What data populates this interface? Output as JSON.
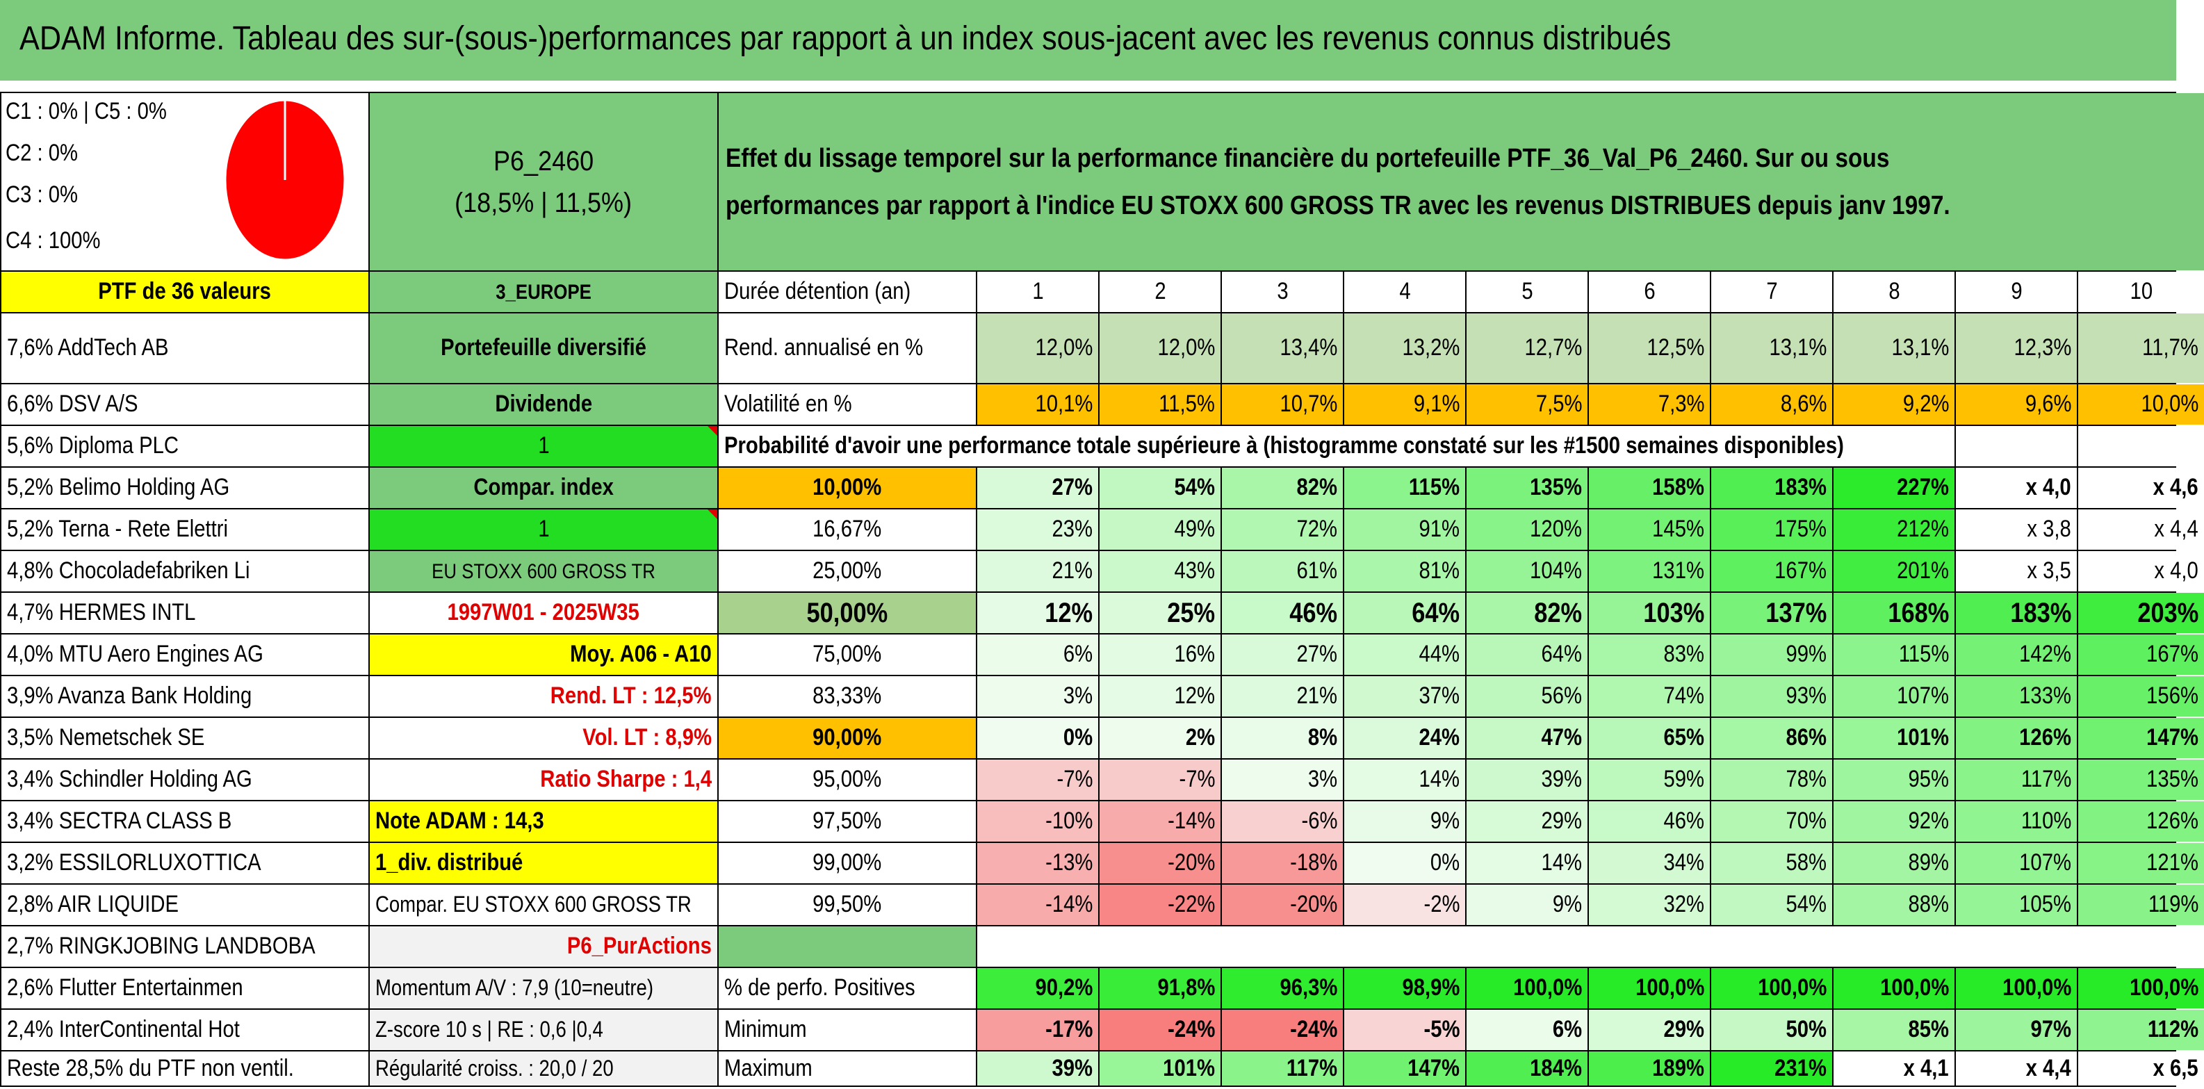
{
  "title": "ADAM Informe. Tableau des sur-(sous-)performances par rapport à un index sous-jacent avec les revenus connus distribués",
  "legend": [
    "C1 : 0% | C5 : 0%",
    "C2 : 0%",
    "C3 : 0%",
    "C4 : 100%"
  ],
  "pie_colors": {
    "fill": "#ff0000",
    "edge": "#ffffff"
  },
  "portfolio": {
    "code": "P6_2460",
    "ratios": "(18,5% | 11,5%)"
  },
  "description": "Effet du lissage temporel sur la performance financière du portefeuille PTF_36_Val_P6_2460. Sur ou sous performances par rapport à l'indice EU STOXX 600 GROSS TR avec les revenus DISTRIBUES depuis janv 1997.",
  "holdings": [
    "PTF de 36 valeurs",
    "7,6% AddTech AB",
    "6,6% DSV A/S",
    "5,6% Diploma PLC",
    "5,2% Belimo Holding AG",
    "5,2% Terna - Rete Elettri",
    "4,8% Chocoladefabriken Li",
    "4,7% HERMES INTL",
    "4,0% MTU Aero Engines AG",
    "3,9% Avanza Bank Holding",
    "3,5% Nemetschek SE",
    "3,4% Schindler Holding AG",
    "3,4% SECTRA CLASS B",
    "3,2% ESSILORLUXOTTICA",
    "2,8% AIR LIQUIDE",
    "2,7% RINGKJOBING LANDBOBA",
    "2,6% Flutter Entertainmen",
    "2,4% InterContinental Hot",
    "Reste 28,5% du PTF non ventil."
  ],
  "info": [
    "3_EUROPE",
    "Portefeuille diversifié",
    "Dividende",
    "1",
    "Compar. index",
    "1",
    "EU STOXX 600 GROSS TR",
    "1997W01 - 2025W35",
    "Moy. A06 - A10",
    "Rend. LT : 12,5%",
    "Vol. LT : 8,9%",
    "Ratio Sharpe : 1,4",
    "Note ADAM : 14,3",
    "1_div. distribué",
    "Compar. EU STOXX 600 GROSS TR",
    "P6_PurActions",
    "Momentum A/V : 7,9 (10=neutre)",
    "Z-score 10 s | RE : 0,6 |0,4",
    "Régularité croiss. : 20,0 / 20"
  ],
  "holding_label": "Durée détention (an)",
  "years": [
    "1",
    "2",
    "3",
    "4",
    "5",
    "6",
    "7",
    "8",
    "9",
    "10"
  ],
  "rend_label": "Rend. annualisé en %",
  "rend": [
    "12,0%",
    "12,0%",
    "13,4%",
    "13,2%",
    "12,7%",
    "12,5%",
    "13,1%",
    "13,1%",
    "12,3%",
    "11,7%"
  ],
  "vol_label": "Volatilité en %",
  "vol": [
    "10,1%",
    "11,5%",
    "10,7%",
    "9,1%",
    "7,5%",
    "7,3%",
    "8,6%",
    "9,2%",
    "9,6%",
    "10,0%"
  ],
  "prob_header": "Probabilité d'avoir une performance totale supérieure à (histogramme constaté sur les #1500 semaines disponibles)",
  "prob_rows": [
    {
      "p": "10,00%",
      "v": [
        "27%",
        "54%",
        "82%",
        "115%",
        "135%",
        "158%",
        "183%",
        "227%",
        "x 4,0",
        "x 4,6"
      ]
    },
    {
      "p": "16,67%",
      "v": [
        "23%",
        "49%",
        "72%",
        "91%",
        "120%",
        "145%",
        "175%",
        "212%",
        "x 3,8",
        "x 4,4"
      ]
    },
    {
      "p": "25,00%",
      "v": [
        "21%",
        "43%",
        "61%",
        "81%",
        "104%",
        "131%",
        "167%",
        "201%",
        "x 3,5",
        "x 4,0"
      ]
    },
    {
      "p": "50,00%",
      "v": [
        "12%",
        "25%",
        "46%",
        "64%",
        "82%",
        "103%",
        "137%",
        "168%",
        "183%",
        "203%"
      ]
    },
    {
      "p": "75,00%",
      "v": [
        "6%",
        "16%",
        "27%",
        "44%",
        "64%",
        "83%",
        "99%",
        "115%",
        "142%",
        "167%"
      ]
    },
    {
      "p": "83,33%",
      "v": [
        "3%",
        "12%",
        "21%",
        "37%",
        "56%",
        "74%",
        "93%",
        "107%",
        "133%",
        "156%"
      ]
    },
    {
      "p": "90,00%",
      "v": [
        "0%",
        "2%",
        "8%",
        "24%",
        "47%",
        "65%",
        "86%",
        "101%",
        "126%",
        "147%"
      ]
    },
    {
      "p": "95,00%",
      "v": [
        "-7%",
        "-7%",
        "3%",
        "14%",
        "39%",
        "59%",
        "78%",
        "95%",
        "117%",
        "135%"
      ]
    },
    {
      "p": "97,50%",
      "v": [
        "-10%",
        "-14%",
        "-6%",
        "9%",
        "29%",
        "46%",
        "70%",
        "92%",
        "110%",
        "126%"
      ]
    },
    {
      "p": "99,00%",
      "v": [
        "-13%",
        "-20%",
        "-18%",
        "0%",
        "14%",
        "34%",
        "58%",
        "89%",
        "107%",
        "121%"
      ]
    },
    {
      "p": "99,50%",
      "v": [
        "-14%",
        "-22%",
        "-20%",
        "-2%",
        "9%",
        "32%",
        "54%",
        "88%",
        "105%",
        "119%"
      ]
    }
  ],
  "pos_label": "% de perfo. Positives",
  "pos": [
    "90,2%",
    "91,8%",
    "96,3%",
    "98,9%",
    "100,0%",
    "100,0%",
    "100,0%",
    "100,0%",
    "100,0%",
    "100,0%"
  ],
  "min_label": "Minimum",
  "min": [
    "-17%",
    "-24%",
    "-24%",
    "-5%",
    "6%",
    "29%",
    "50%",
    "85%",
    "97%",
    "112%"
  ],
  "max_label": "Maximum",
  "max": [
    "39%",
    "101%",
    "117%",
    "147%",
    "184%",
    "189%",
    "231%",
    "x 4,1",
    "x 4,4",
    "x 6,5"
  ]
}
